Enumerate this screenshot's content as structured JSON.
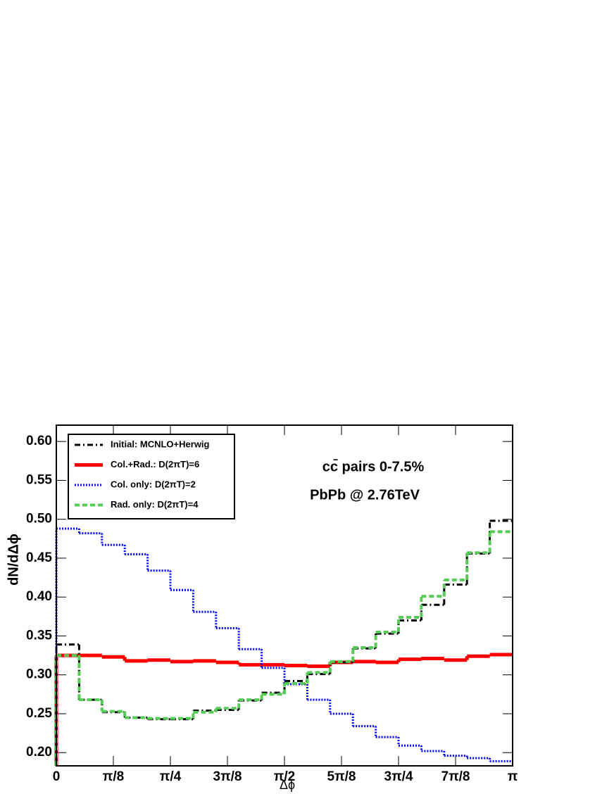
{
  "chart_data": {
    "type": "histogram",
    "y_label": "dN/dΔϕ",
    "x_label": "Δϕ",
    "annotations": [
      "cc̄ pairs  0-7.5%",
      "PbPb @ 2.76TeV"
    ],
    "legend": "upper left",
    "bins": [
      0,
      0.15708,
      0.31416,
      0.47124,
      0.62832,
      0.7854,
      0.94248,
      1.09956,
      1.25664,
      1.41372,
      1.5708,
      1.72788,
      1.88496,
      2.04204,
      2.19911,
      2.35619,
      2.51327,
      2.67035,
      2.82743,
      2.98451,
      3.14159
    ],
    "series": [
      {
        "name": "Initial: MCNLO+Herwig",
        "color": "#000000",
        "style": "dashdot",
        "values": [
          0.339,
          0.268,
          0.252,
          0.245,
          0.243,
          0.243,
          0.254,
          0.255,
          0.267,
          0.277,
          0.292,
          0.301,
          0.316,
          0.334,
          0.353,
          0.37,
          0.39,
          0.416,
          0.456,
          0.498
        ]
      },
      {
        "name": "Col.+Rad.: D(2πT)=6",
        "color": "#ff0000",
        "style": "solid",
        "values": [
          0.325,
          0.325,
          0.323,
          0.318,
          0.319,
          0.317,
          0.318,
          0.316,
          0.313,
          0.313,
          0.312,
          0.311,
          0.316,
          0.317,
          0.316,
          0.32,
          0.321,
          0.319,
          0.324,
          0.326
        ]
      },
      {
        "name": "Col. only: D(2πT)=2",
        "color": "#0000ff",
        "style": "dotted",
        "values": [
          0.488,
          0.482,
          0.467,
          0.455,
          0.434,
          0.409,
          0.381,
          0.36,
          0.333,
          0.309,
          0.288,
          0.268,
          0.25,
          0.234,
          0.22,
          0.209,
          0.202,
          0.196,
          0.193,
          0.189
        ]
      },
      {
        "name": "Rad. only: D(2πT)=4",
        "color": "#55cc55",
        "style": "dashed",
        "values": [
          0.325,
          0.268,
          0.253,
          0.245,
          0.244,
          0.244,
          0.252,
          0.257,
          0.268,
          0.275,
          0.289,
          0.303,
          0.317,
          0.335,
          0.355,
          0.374,
          0.401,
          0.422,
          0.457,
          0.484
        ]
      }
    ],
    "xlim": [
      0,
      3.14159
    ],
    "xticks": [
      0,
      {
        "value": 0.3927,
        "label": "π/8"
      },
      {
        "value": 0.7854,
        "label": "π/4"
      },
      {
        "value": 1.1781,
        "label": "3π/8"
      },
      {
        "value": 1.5708,
        "label": "π/2"
      },
      {
        "value": 1.9635,
        "label": "5π/8"
      },
      {
        "value": 2.35619,
        "label": "3π/4"
      },
      {
        "value": 2.74889,
        "label": "7π/8"
      },
      {
        "value": 3.14159,
        "label": "π"
      }
    ],
    "ylim": [
      0.183,
      0.621
    ],
    "yticks": [
      {
        "value": 0.2,
        "label": "0.20"
      },
      0.25,
      {
        "value": 0.3,
        "label": "0.30"
      },
      0.35,
      {
        "value": 0.4,
        "label": "0.40"
      },
      0.45,
      {
        "value": 0.5,
        "label": "0.50"
      },
      0.55,
      {
        "value": 0.6,
        "label": "0.60"
      }
    ]
  }
}
